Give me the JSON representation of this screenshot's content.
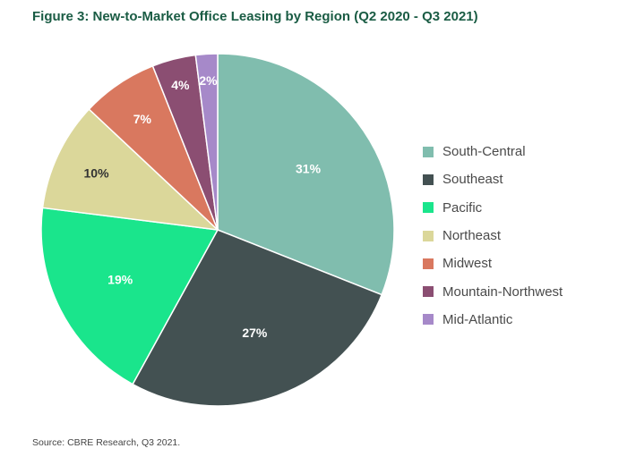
{
  "title": "Figure 3: New-to-Market Office Leasing by Region (Q2 2020 - Q3 2021)",
  "source": "Source: CBRE Research, Q3 2021.",
  "chart_data": {
    "type": "pie",
    "title": "Figure 3: New-to-Market Office Leasing by Region (Q2 2020 - Q3 2021)",
    "legend_position": "right",
    "slices": [
      {
        "name": "South-Central",
        "value": 31,
        "label": "31%",
        "color": "#80bdae"
      },
      {
        "name": "Southeast",
        "value": 27,
        "label": "27%",
        "color": "#435152"
      },
      {
        "name": "Pacific",
        "value": 19,
        "label": "19%",
        "color": "#1ae58c"
      },
      {
        "name": "Northeast",
        "value": 10,
        "label": "10%",
        "color": "#dbd79a"
      },
      {
        "name": "Midwest",
        "value": 7,
        "label": "7%",
        "color": "#d9785f"
      },
      {
        "name": "Mountain-Northwest",
        "value": 4,
        "label": "4%",
        "color": "#8b4e72"
      },
      {
        "name": "Mid-Atlantic",
        "value": 2,
        "label": "2%",
        "color": "#a689c9"
      }
    ]
  }
}
